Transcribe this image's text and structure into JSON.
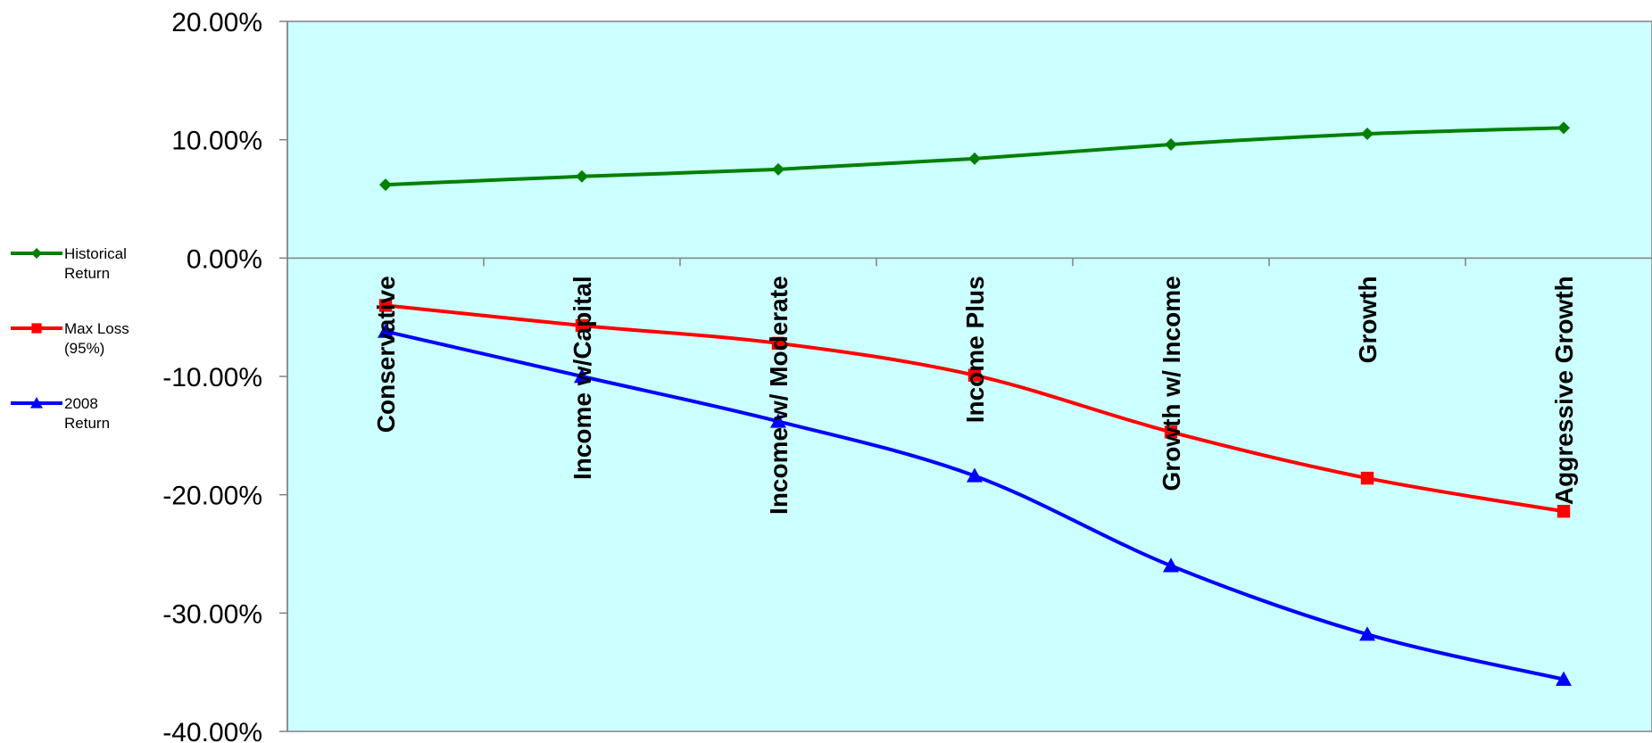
{
  "chart_data": {
    "type": "line",
    "title": "",
    "xlabel": "",
    "ylabel": "",
    "ylim": [
      -0.4,
      0.2
    ],
    "y_ticks": [
      "20.00%",
      "10.00%",
      "0.00%",
      "-10.00%",
      "-20.00%",
      "-30.00%",
      "-40.00%"
    ],
    "y_tick_values": [
      0.2,
      0.1,
      0.0,
      -0.1,
      -0.2,
      -0.3,
      -0.4
    ],
    "categories": [
      "Conservative",
      "Income w/Capital",
      "Income w/ Moderate",
      "Income Plus",
      "Growth w/ Income",
      "Growth",
      "Aggressive Growth"
    ],
    "series": [
      {
        "name": "Historical Return",
        "legend_lines": [
          "Historical",
          "Return"
        ],
        "color": "#008000",
        "marker": "diamond",
        "values": [
          0.062,
          0.069,
          0.075,
          0.084,
          0.096,
          0.105,
          0.11
        ]
      },
      {
        "name": "Max Loss (95%)",
        "legend_lines": [
          "Max Loss",
          "(95%)"
        ],
        "color": "#ff0000",
        "marker": "square",
        "values": [
          -0.04,
          -0.057,
          -0.072,
          -0.099,
          -0.147,
          -0.186,
          -0.214
        ]
      },
      {
        "name": "2008 Return",
        "legend_lines": [
          "2008",
          "Return"
        ],
        "color": "#0000ff",
        "marker": "triangle",
        "values": [
          -0.062,
          -0.1,
          -0.138,
          -0.184,
          -0.26,
          -0.318,
          -0.356
        ]
      }
    ],
    "plot_background": "#ccffff",
    "grid": false,
    "legend_position": "left"
  }
}
